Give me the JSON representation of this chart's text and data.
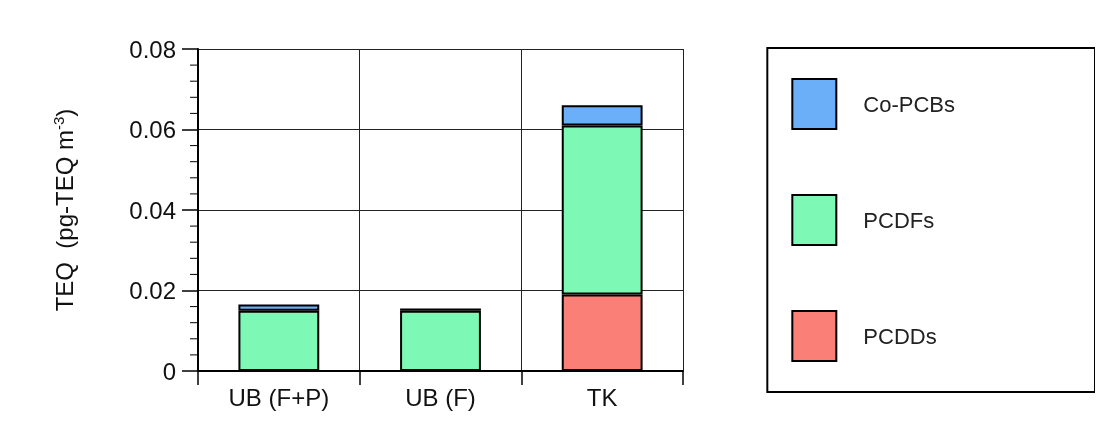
{
  "chart_data": {
    "type": "bar",
    "stacked": true,
    "ylabel": "TEQ  (pg-TEQ m$^{-3}$)",
    "categories": [
      "UB (F+P)",
      "UB (F)",
      "TK"
    ],
    "series": [
      {
        "name": "PCDDs",
        "color": "#fa7f77",
        "values": [
          0,
          0,
          0.019
        ]
      },
      {
        "name": "PCDFs",
        "color": "#7ef8b5",
        "values": [
          0.015,
          0.015,
          0.042
        ]
      },
      {
        "name": "Co-PCBs",
        "color": "#6aaff7",
        "values": [
          0.0015,
          0.0005,
          0.005
        ]
      }
    ],
    "ylim": [
      0,
      0.08
    ],
    "yticks": [
      0,
      0.02,
      0.04,
      0.06,
      0.08
    ],
    "grid": true,
    "legend": "right"
  }
}
